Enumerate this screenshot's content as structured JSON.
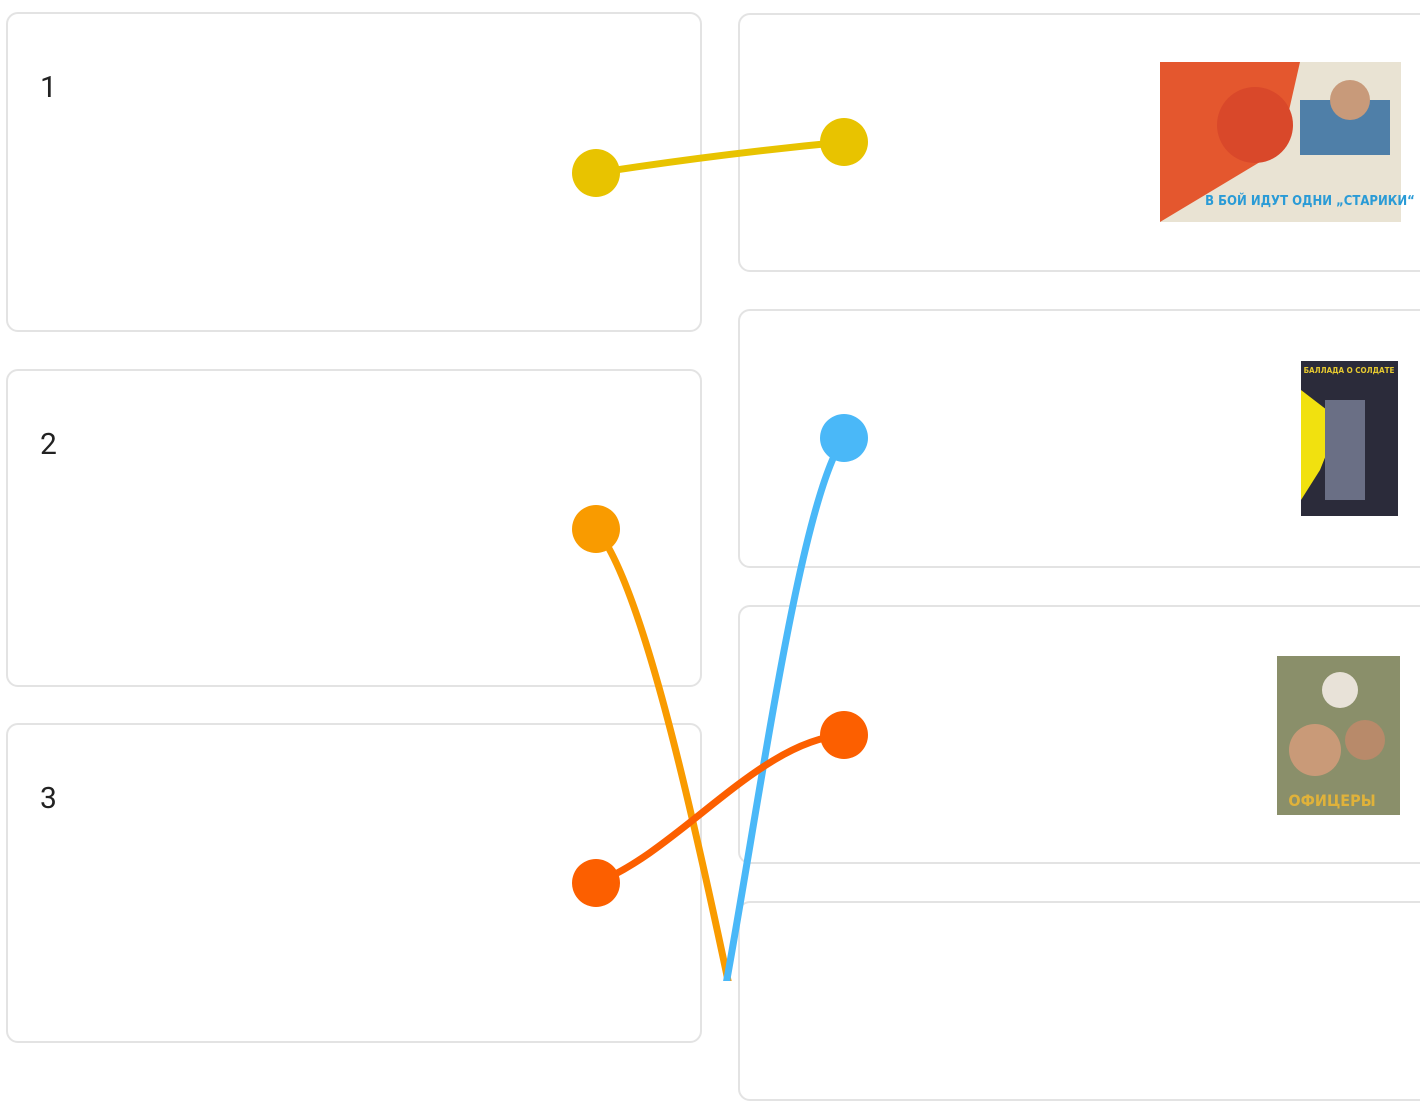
{
  "left_items": [
    {
      "label": "1"
    },
    {
      "label": "2"
    },
    {
      "label": "3"
    }
  ],
  "right_items": [
    {
      "poster_title": "В БОЙ ИДУТ ОДНИ „СТАРИКИ“"
    },
    {
      "poster_title": "БАЛЛАДА О СОЛДАТЕ"
    },
    {
      "poster_title": "ОФИЦЕРЫ"
    }
  ]
}
